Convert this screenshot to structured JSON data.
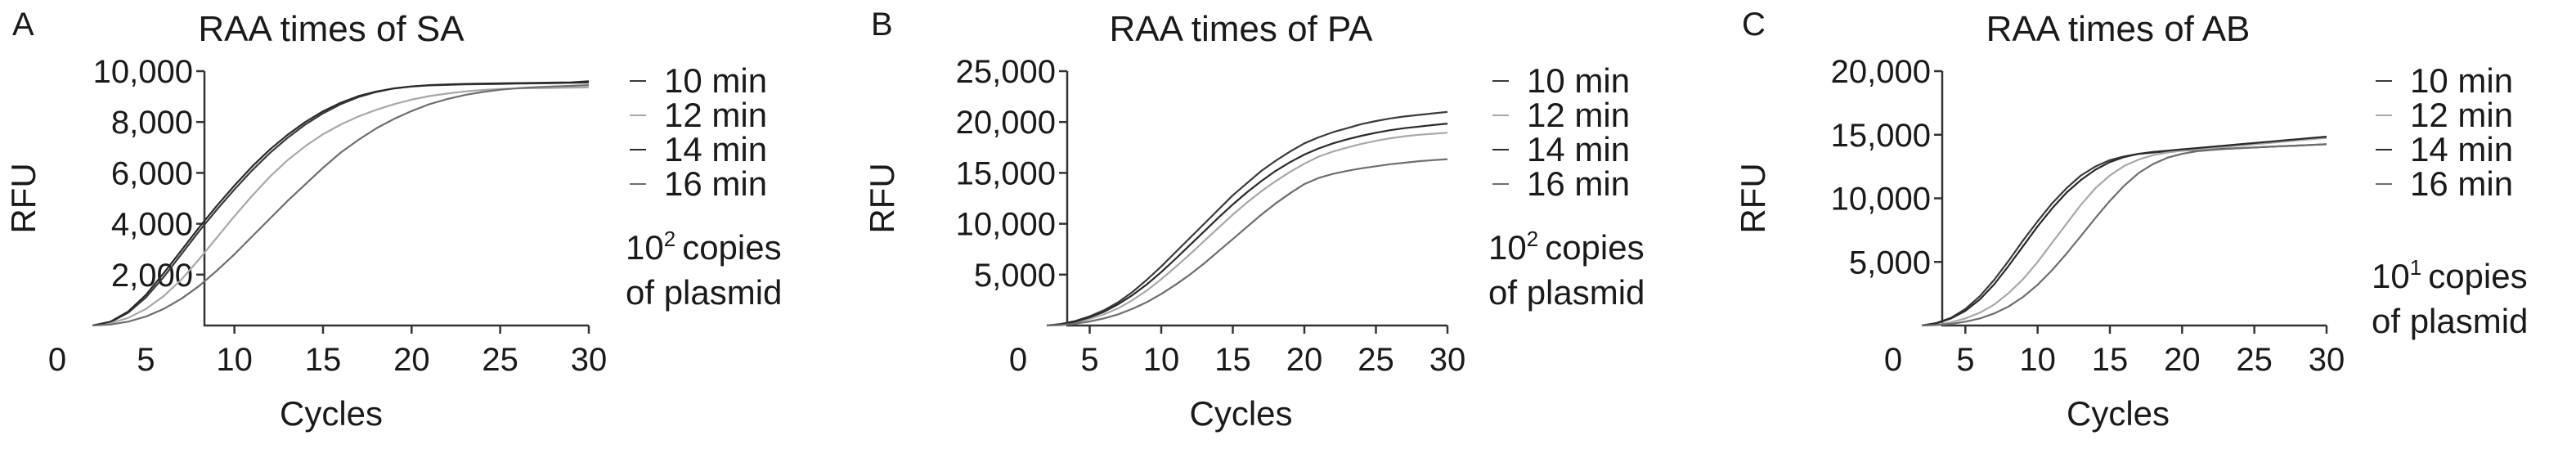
{
  "chart_data": [
    {
      "panel": "A",
      "type": "line",
      "title": "RAA times of SA",
      "xlabel": "Cycles",
      "ylabel": "RFU",
      "xlim": [
        0,
        30
      ],
      "ylim": [
        0,
        10000
      ],
      "xticks": [
        0,
        5,
        10,
        15,
        20,
        25,
        30
      ],
      "yticks": [
        2000,
        4000,
        6000,
        8000,
        10000
      ],
      "ytick_labels": [
        "2,000",
        "4,000",
        "6,000",
        "8,000",
        "10,000"
      ],
      "legend_position": "right",
      "note": {
        "base": "10",
        "exp": "2",
        "line1": "copies",
        "line2": "of plasmid"
      },
      "series": [
        {
          "name": "10 min",
          "color": "#3a3a3a",
          "x": [
            2,
            3,
            4,
            5,
            6,
            7,
            8,
            9,
            10,
            11,
            12,
            13,
            14,
            15,
            16,
            17,
            18,
            19,
            20,
            21,
            22,
            23,
            24,
            25,
            26,
            27,
            28,
            29,
            30
          ],
          "y": [
            0,
            130,
            500,
            1100,
            1900,
            2800,
            3700,
            4550,
            5350,
            6100,
            6780,
            7380,
            7900,
            8340,
            8700,
            8980,
            9180,
            9320,
            9400,
            9440,
            9460,
            9480,
            9490,
            9500,
            9510,
            9520,
            9530,
            9540,
            9550
          ]
        },
        {
          "name": "12 min",
          "color": "#a8a8a8",
          "x": [
            2,
            3,
            4,
            5,
            6,
            7,
            8,
            9,
            10,
            11,
            12,
            13,
            14,
            15,
            16,
            17,
            18,
            19,
            20,
            21,
            22,
            23,
            24,
            25,
            26,
            27,
            28,
            29,
            30
          ],
          "y": [
            0,
            90,
            300,
            650,
            1150,
            1800,
            2600,
            3450,
            4300,
            5100,
            5850,
            6500,
            7050,
            7520,
            7900,
            8220,
            8480,
            8700,
            8880,
            9020,
            9120,
            9200,
            9260,
            9300,
            9320,
            9330,
            9340,
            9350,
            9360
          ]
        },
        {
          "name": "14 min",
          "color": "#2a2a2a",
          "x": [
            2,
            3,
            4,
            5,
            6,
            7,
            8,
            9,
            10,
            11,
            12,
            13,
            14,
            15,
            16,
            17,
            18,
            19,
            20,
            21,
            22,
            23,
            24,
            25,
            26,
            27,
            28,
            29,
            30
          ],
          "y": [
            0,
            150,
            550,
            1200,
            2050,
            2950,
            3850,
            4700,
            5500,
            6250,
            6920,
            7500,
            8000,
            8420,
            8760,
            9020,
            9200,
            9320,
            9400,
            9450,
            9480,
            9500,
            9510,
            9520,
            9530,
            9540,
            9550,
            9560,
            9600
          ]
        },
        {
          "name": "16 min",
          "color": "#6e6e6e",
          "x": [
            2,
            3,
            4,
            5,
            6,
            7,
            8,
            9,
            10,
            11,
            12,
            13,
            14,
            15,
            16,
            17,
            18,
            19,
            20,
            21,
            22,
            23,
            24,
            25,
            26,
            27,
            28,
            29,
            30
          ],
          "y": [
            0,
            40,
            150,
            350,
            650,
            1050,
            1550,
            2150,
            2800,
            3500,
            4200,
            4900,
            5550,
            6200,
            6800,
            7300,
            7750,
            8120,
            8430,
            8700,
            8900,
            9060,
            9180,
            9270,
            9330,
            9370,
            9400,
            9420,
            9450
          ]
        }
      ]
    },
    {
      "panel": "B",
      "type": "line",
      "title": "RAA times of PA",
      "xlabel": "Cycles",
      "ylabel": "RFU",
      "xlim": [
        0,
        30
      ],
      "ylim": [
        0,
        25000
      ],
      "xticks": [
        0,
        5,
        10,
        15,
        20,
        25,
        30
      ],
      "yticks": [
        5000,
        10000,
        15000,
        20000,
        25000
      ],
      "ytick_labels": [
        "5,000",
        "10,000",
        "15,000",
        "20,000",
        "25,000"
      ],
      "legend_position": "right",
      "note": {
        "base": "10",
        "exp": "2",
        "line1": "copies",
        "line2": "of plasmid"
      },
      "series": [
        {
          "name": "10 min",
          "color": "#3a3a3a",
          "x": [
            2,
            3,
            4,
            5,
            6,
            7,
            8,
            9,
            10,
            11,
            12,
            13,
            14,
            15,
            16,
            17,
            18,
            19,
            20,
            21,
            22,
            23,
            24,
            25,
            26,
            27,
            28,
            29,
            30
          ],
          "y": [
            0,
            150,
            450,
            900,
            1500,
            2300,
            3300,
            4500,
            5800,
            7200,
            8600,
            10000,
            11400,
            12800,
            14000,
            15200,
            16200,
            17100,
            17900,
            18500,
            19000,
            19400,
            19800,
            20100,
            20350,
            20550,
            20700,
            20850,
            21000
          ]
        },
        {
          "name": "12 min",
          "color": "#a8a8a8",
          "x": [
            2,
            3,
            4,
            5,
            6,
            7,
            8,
            9,
            10,
            11,
            12,
            13,
            14,
            15,
            16,
            17,
            18,
            19,
            20,
            21,
            22,
            23,
            24,
            25,
            26,
            27,
            28,
            29,
            30
          ],
          "y": [
            0,
            100,
            300,
            650,
            1100,
            1700,
            2500,
            3450,
            4550,
            5750,
            7000,
            8300,
            9600,
            10900,
            12100,
            13200,
            14200,
            15100,
            15900,
            16600,
            17100,
            17500,
            17850,
            18150,
            18400,
            18600,
            18750,
            18850,
            18950
          ]
        },
        {
          "name": "14 min",
          "color": "#2a2a2a",
          "x": [
            2,
            3,
            4,
            5,
            6,
            7,
            8,
            9,
            10,
            11,
            12,
            13,
            14,
            15,
            16,
            17,
            18,
            19,
            20,
            21,
            22,
            23,
            24,
            25,
            26,
            27,
            28,
            29,
            30
          ],
          "y": [
            0,
            120,
            380,
            800,
            1350,
            2100,
            3000,
            4050,
            5250,
            6550,
            7900,
            9250,
            10600,
            11900,
            13100,
            14200,
            15200,
            16050,
            16800,
            17400,
            17900,
            18300,
            18650,
            18950,
            19200,
            19400,
            19550,
            19700,
            19850
          ]
        },
        {
          "name": "16 min",
          "color": "#6e6e6e",
          "x": [
            2,
            3,
            4,
            5,
            6,
            7,
            8,
            9,
            10,
            11,
            12,
            13,
            14,
            15,
            16,
            17,
            18,
            19,
            20,
            21,
            22,
            23,
            24,
            25,
            26,
            27,
            28,
            29,
            30
          ],
          "y": [
            0,
            50,
            180,
            400,
            700,
            1100,
            1650,
            2300,
            3100,
            4000,
            5000,
            6100,
            7300,
            8500,
            9700,
            10900,
            12000,
            13000,
            13900,
            14500,
            14900,
            15200,
            15450,
            15650,
            15850,
            16000,
            16150,
            16250,
            16350
          ]
        }
      ]
    },
    {
      "panel": "C",
      "type": "line",
      "title": "RAA times of AB",
      "xlabel": "Cycles",
      "ylabel": "RFU",
      "xlim": [
        0,
        30
      ],
      "ylim": [
        0,
        20000
      ],
      "xticks": [
        0,
        5,
        10,
        15,
        20,
        25,
        30
      ],
      "yticks": [
        5000,
        10000,
        15000,
        20000
      ],
      "ytick_labels": [
        "5,000",
        "10,000",
        "15,000",
        "20,000"
      ],
      "legend_position": "right",
      "note": {
        "base": "10",
        "exp": "1",
        "line1": "copies",
        "line2": "of plasmid"
      },
      "series": [
        {
          "name": "10 min",
          "color": "#3a3a3a",
          "x": [
            2,
            3,
            4,
            5,
            6,
            7,
            8,
            9,
            10,
            11,
            12,
            13,
            14,
            15,
            16,
            17,
            18,
            19,
            20,
            21,
            22,
            23,
            24,
            25,
            26,
            27,
            28,
            29,
            30
          ],
          "y": [
            0,
            200,
            600,
            1300,
            2300,
            3600,
            5100,
            6700,
            8200,
            9600,
            10800,
            11800,
            12500,
            13000,
            13300,
            13500,
            13600,
            13700,
            13750,
            13800,
            13850,
            13900,
            13950,
            14000,
            14050,
            14100,
            14150,
            14200,
            14250
          ]
        },
        {
          "name": "12 min",
          "color": "#a8a8a8",
          "x": [
            2,
            3,
            4,
            5,
            6,
            7,
            8,
            9,
            10,
            11,
            12,
            13,
            14,
            15,
            16,
            17,
            18,
            19,
            20,
            21,
            22,
            23,
            24,
            25,
            26,
            27,
            28,
            29,
            30
          ],
          "y": [
            0,
            80,
            250,
            550,
            1000,
            1650,
            2550,
            3650,
            5000,
            6500,
            8000,
            9500,
            10800,
            11800,
            12550,
            13050,
            13400,
            13600,
            13750,
            13850,
            13950,
            14050,
            14150,
            14250,
            14350,
            14450,
            14550,
            14650,
            14750
          ]
        },
        {
          "name": "14 min",
          "color": "#2a2a2a",
          "x": [
            2,
            3,
            4,
            5,
            6,
            7,
            8,
            9,
            10,
            11,
            12,
            13,
            14,
            15,
            16,
            17,
            18,
            19,
            20,
            21,
            22,
            23,
            24,
            25,
            26,
            27,
            28,
            29,
            30
          ],
          "y": [
            0,
            180,
            550,
            1150,
            2050,
            3250,
            4700,
            6250,
            7800,
            9200,
            10450,
            11450,
            12250,
            12850,
            13250,
            13500,
            13650,
            13750,
            13850,
            13950,
            14050,
            14150,
            14250,
            14350,
            14450,
            14550,
            14650,
            14750,
            14850
          ]
        },
        {
          "name": "16 min",
          "color": "#6e6e6e",
          "x": [
            2,
            3,
            4,
            5,
            6,
            7,
            8,
            9,
            10,
            11,
            12,
            13,
            14,
            15,
            16,
            17,
            18,
            19,
            20,
            21,
            22,
            23,
            24,
            25,
            26,
            27,
            28,
            29,
            30
          ],
          "y": [
            0,
            40,
            120,
            300,
            550,
            950,
            1500,
            2250,
            3200,
            4350,
            5650,
            7050,
            8450,
            9800,
            11000,
            12000,
            12700,
            13200,
            13500,
            13700,
            13800,
            13880,
            13950,
            14000,
            14050,
            14100,
            14150,
            14200,
            14250
          ]
        }
      ]
    }
  ]
}
